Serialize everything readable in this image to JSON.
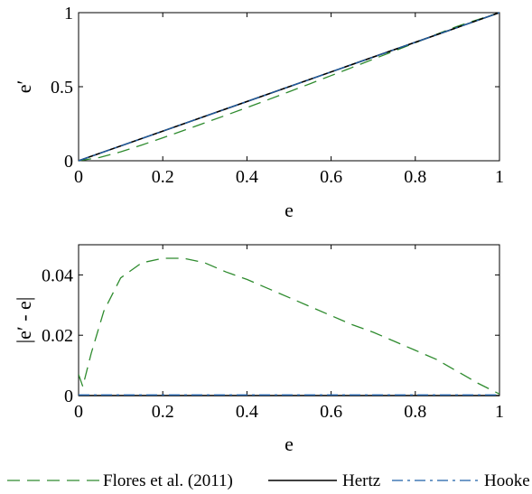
{
  "chart_data": [
    {
      "type": "line",
      "xlabel": "e",
      "ylabel": "e′",
      "xlim": [
        0,
        1
      ],
      "ylim": [
        0,
        1
      ],
      "xticks": [
        "0",
        "0.2",
        "0.4",
        "0.6",
        "0.8",
        "1"
      ],
      "yticks": [
        "0",
        "0.5",
        "1"
      ],
      "xtick_values": [
        0,
        0.2,
        0.4,
        0.6,
        0.8,
        1
      ],
      "ytick_values": [
        0,
        0.5,
        1
      ],
      "grid": false,
      "series": [
        {
          "name": "Flores et al. (2011)",
          "style": "dashed",
          "color": "#2e8b2e",
          "x": [
            0,
            0.05,
            0.1,
            0.15,
            0.2,
            0.25,
            0.3,
            0.35,
            0.4,
            0.45,
            0.5,
            0.55,
            0.6,
            0.65,
            0.7,
            0.75,
            0.8,
            0.85,
            0.9,
            0.95,
            1
          ],
          "y": [
            0,
            0.022,
            0.06,
            0.106,
            0.155,
            0.205,
            0.256,
            0.307,
            0.359,
            0.412,
            0.466,
            0.52,
            0.575,
            0.63,
            0.686,
            0.741,
            0.797,
            0.853,
            0.908,
            0.954,
            1
          ]
        },
        {
          "name": "Hertz",
          "style": "solid",
          "color": "#000000",
          "x": [
            0,
            1
          ],
          "y": [
            0,
            1
          ]
        },
        {
          "name": "Hooke",
          "style": "dashdot",
          "color": "#1f5fa8",
          "x": [
            0,
            1
          ],
          "y": [
            0,
            1
          ]
        }
      ]
    },
    {
      "type": "line",
      "xlabel": "e",
      "ylabel": "|e′ - e|",
      "xlim": [
        0,
        1
      ],
      "ylim": [
        0,
        0.05
      ],
      "xticks": [
        "0",
        "0.2",
        "0.4",
        "0.6",
        "0.8",
        "1"
      ],
      "yticks": [
        "0",
        "0.02",
        "0.04"
      ],
      "xtick_values": [
        0,
        0.2,
        0.4,
        0.6,
        0.8,
        1
      ],
      "ytick_values": [
        0,
        0.02,
        0.04
      ],
      "grid": false,
      "series": [
        {
          "name": "Flores et al. (2011)",
          "style": "dashed",
          "color": "#2e8b2e",
          "x": [
            0,
            0.01,
            0.03,
            0.06,
            0.1,
            0.15,
            0.2,
            0.25,
            0.3,
            0.35,
            0.4,
            0.45,
            0.5,
            0.55,
            0.6,
            0.65,
            0.7,
            0.75,
            0.8,
            0.85,
            0.9,
            0.95,
            1
          ],
          "y": [
            0.007,
            0.003,
            0.014,
            0.028,
            0.039,
            0.044,
            0.0455,
            0.0455,
            0.044,
            0.041,
            0.0385,
            0.0355,
            0.0325,
            0.0295,
            0.0265,
            0.0235,
            0.021,
            0.018,
            0.015,
            0.012,
            0.008,
            0.004,
            0.0005
          ]
        },
        {
          "name": "Hertz",
          "style": "solid",
          "color": "#000000",
          "x": [
            0,
            1
          ],
          "y": [
            0,
            0
          ]
        },
        {
          "name": "Hooke",
          "style": "dashdot",
          "color": "#1f5fa8",
          "x": [
            0,
            1
          ],
          "y": [
            0.0002,
            0.0002
          ]
        }
      ]
    }
  ],
  "legend": {
    "position": "bottom",
    "items": [
      {
        "label": "Flores et al. (2011)",
        "style": "dashed",
        "color": "#2e8b2e"
      },
      {
        "label": "Hertz",
        "style": "solid",
        "color": "#000000"
      },
      {
        "label": "Hooke",
        "style": "dashdot",
        "color": "#1f5fa8"
      }
    ]
  }
}
